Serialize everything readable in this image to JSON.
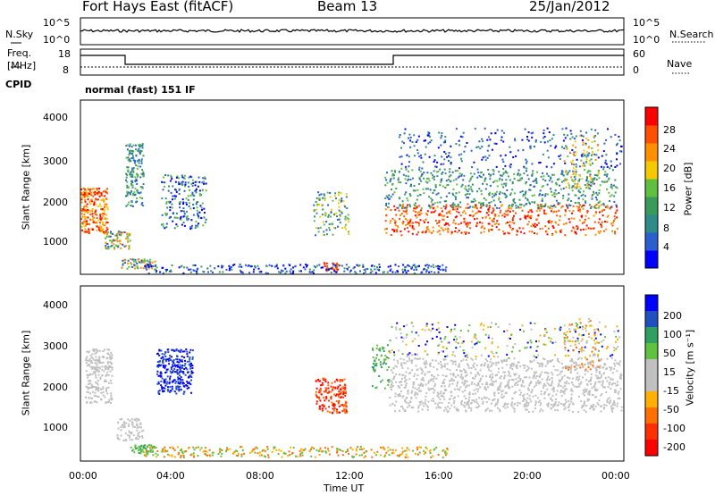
{
  "header": {
    "station": "Fort Hays East (fitACF)",
    "beam": "Beam 13",
    "date": "25/Jan/2012"
  },
  "noise_panel": {
    "left_label": "N.Sky",
    "right_label": "N.Search",
    "left_ticks": [
      "10^5",
      "10^0"
    ],
    "right_ticks": [
      "10^5",
      "10^0"
    ]
  },
  "freq_panel": {
    "left_label_1": "Freq.",
    "left_label_2": "[MHz]",
    "right_label": "Nave",
    "left_ticks": [
      "18",
      "8"
    ],
    "right_ticks": [
      "60",
      "0"
    ],
    "cpid_label": "CPID",
    "cpid_text": "normal (fast) 151 IF"
  },
  "colors": {
    "power_scale": [
      "#0000ff",
      "#2a5fd0",
      "#2f8a8a",
      "#3a9a5a",
      "#5fbf3f",
      "#f5c800",
      "#ff9000",
      "#ff5000",
      "#ff0000"
    ],
    "velocity_scale": [
      "#0000ff",
      "#2050c0",
      "#30a060",
      "#60c040",
      "#c0c0c0",
      "#c0c0c0",
      "#ffb000",
      "#ff7000",
      "#ff3000",
      "#ff0000"
    ]
  },
  "chart_data": [
    {
      "type": "heatmap",
      "name": "power",
      "ylabel": "Slant Range [km]",
      "yticks": [
        "1000",
        "2000",
        "3000",
        "4000"
      ],
      "ylim": [
        200,
        4500
      ],
      "colorbar_label": "Power [dB]",
      "colorbar_ticks": [
        "4",
        "8",
        "12",
        "16",
        "20",
        "24",
        "28"
      ],
      "colorbar_range": [
        0,
        30
      ]
    },
    {
      "type": "heatmap",
      "name": "velocity",
      "ylabel": "Slant Range [km]",
      "yticks": [
        "1000",
        "2000",
        "3000",
        "4000"
      ],
      "ylim": [
        200,
        4500
      ],
      "colorbar_label": "Velocity [m s⁻¹]",
      "colorbar_ticks": [
        "200",
        "100",
        "50",
        "15",
        "-15",
        "-50",
        "-100",
        "-200"
      ]
    }
  ],
  "xaxis": {
    "label": "Time UT",
    "ticks": [
      "00:00",
      "04:00",
      "08:00",
      "12:00",
      "16:00",
      "20:00",
      "00:00"
    ]
  }
}
